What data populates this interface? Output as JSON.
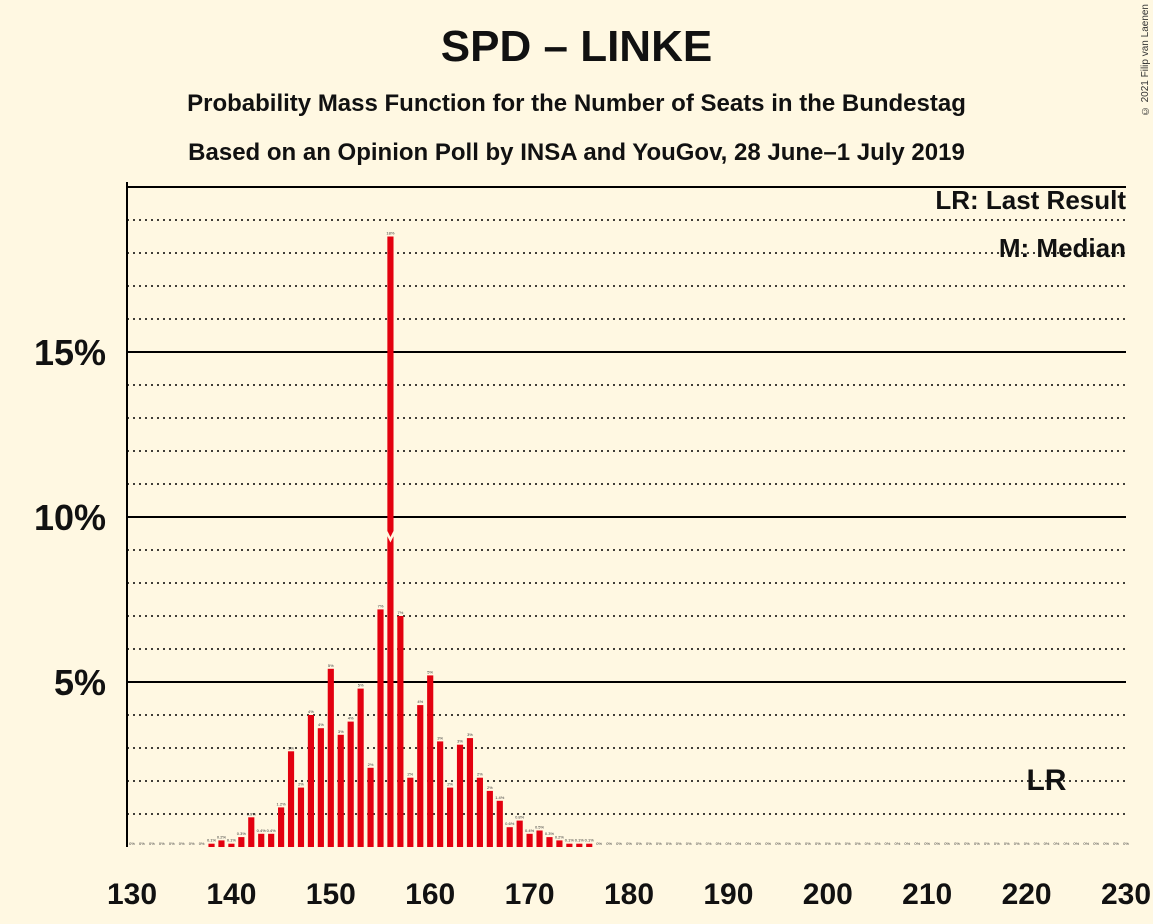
{
  "chart_data": {
    "type": "bar",
    "title": "SPD – LINKE",
    "subtitle": "Probability Mass Function for the Number of Seats in the Bundestag",
    "subtitle2": "Based on an Opinion Poll by INSA and YouGov, 28 June–1 July 2019",
    "x_range": [
      130,
      230
    ],
    "x_ticks": [
      "130",
      "140",
      "150",
      "160",
      "170",
      "180",
      "190",
      "200",
      "210",
      "220",
      "230"
    ],
    "y_range": [
      0,
      20
    ],
    "y_ticks": [
      {
        "value": 5,
        "label": "5%"
      },
      {
        "value": 10,
        "label": "10%"
      },
      {
        "value": 15,
        "label": "15%"
      }
    ],
    "grid": "dotted every 1%, solid every 5%",
    "legend": [
      "LR: Last Result",
      "M: Median"
    ],
    "median": 156,
    "last_result": 222,
    "last_result_label": "LR",
    "bar_color": "#E3000F",
    "x": [
      130,
      131,
      132,
      133,
      134,
      135,
      136,
      137,
      138,
      139,
      140,
      141,
      142,
      143,
      144,
      145,
      146,
      147,
      148,
      149,
      150,
      151,
      152,
      153,
      154,
      155,
      156,
      157,
      158,
      159,
      160,
      161,
      162,
      163,
      164,
      165,
      166,
      167,
      168,
      169,
      170,
      171,
      172,
      173,
      174,
      175,
      176,
      177,
      178,
      179,
      180,
      181,
      182,
      183,
      184,
      185,
      186,
      187,
      188,
      189,
      190,
      191,
      192,
      193,
      194,
      195,
      196,
      197,
      198,
      199,
      200,
      201,
      202,
      203,
      204,
      205,
      206,
      207,
      208,
      209,
      210,
      211,
      212,
      213,
      214,
      215,
      216,
      217,
      218,
      219,
      220,
      221,
      222,
      223,
      224,
      225,
      226,
      227,
      228,
      229,
      230
    ],
    "values": [
      0,
      0,
      0,
      0,
      0,
      0,
      0,
      0,
      0.1,
      0.2,
      0.1,
      0.3,
      0.9,
      0.4,
      0.4,
      1.2,
      2.9,
      1.8,
      4.0,
      3.6,
      5.4,
      3.4,
      3.8,
      4.8,
      2.4,
      7.2,
      18.5,
      7.0,
      2.1,
      4.3,
      5.2,
      3.2,
      1.8,
      3.1,
      3.3,
      2.1,
      1.7,
      1.4,
      0.6,
      0.8,
      0.4,
      0.5,
      0.3,
      0.2,
      0.1,
      0.1,
      0.1,
      0,
      0,
      0,
      0,
      0,
      0,
      0,
      0,
      0,
      0,
      0,
      0,
      0,
      0,
      0,
      0,
      0,
      0,
      0,
      0,
      0,
      0,
      0,
      0,
      0,
      0,
      0,
      0,
      0,
      0,
      0,
      0,
      0,
      0,
      0,
      0,
      0,
      0,
      0,
      0,
      0,
      0,
      0,
      0,
      0,
      0,
      0,
      0,
      0,
      0,
      0,
      0,
      0,
      0
    ],
    "value_labels": [
      "0%",
      "0%",
      "0%",
      "0%",
      "0%",
      "0%",
      "0%",
      "0%",
      "0.1%",
      "0.2%",
      "0.1%",
      "0.3%",
      "0.9%",
      "0.4%",
      "0.4%",
      "1.2%",
      "3%",
      "2%",
      "4%",
      "4%",
      "5%",
      "3%",
      "4%",
      "5%",
      "2%",
      "7%",
      "18%",
      "7%",
      "2%",
      "4%",
      "5%",
      "3%",
      "2%",
      "3%",
      "3%",
      "2%",
      "2%",
      "1.4%",
      "0.6%",
      "0.8%",
      "0.4%",
      "0.5%",
      "0.3%",
      "0.2%",
      "0.1%",
      "0.1%",
      "0.1%",
      "0%",
      "0%",
      "0%",
      "0%",
      "0%",
      "0%",
      "0%",
      "0%",
      "0%",
      "0%",
      "0%",
      "0%",
      "0%",
      "0%",
      "0%",
      "0%",
      "0%",
      "0%",
      "0%",
      "0%",
      "0%",
      "0%",
      "0%",
      "0%",
      "0%",
      "0%",
      "0%",
      "0%",
      "0%",
      "0%",
      "0%",
      "0%",
      "0%",
      "0%",
      "0%",
      "0%",
      "0%",
      "0%",
      "0%",
      "0%",
      "0%",
      "0%",
      "0%",
      "0%",
      "0%",
      "0%",
      "0%",
      "0%",
      "0%",
      "0%",
      "0%",
      "0%",
      "0%",
      "0%"
    ]
  },
  "copyright": "© 2021 Filip van Laenen"
}
